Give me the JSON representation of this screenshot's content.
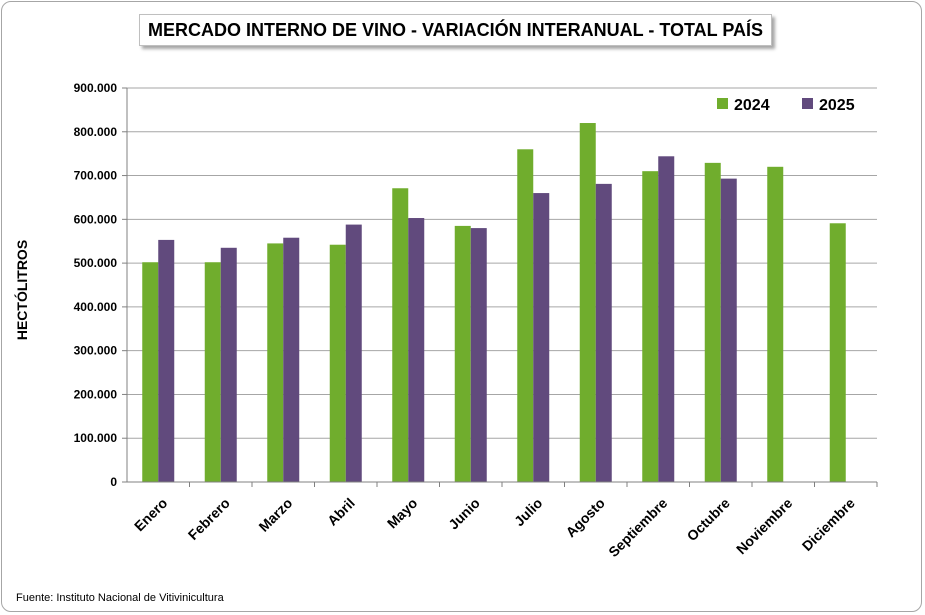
{
  "chart_data": {
    "type": "bar",
    "title": "MERCADO INTERNO DE VINO - VARIACIÓN INTERANUAL - TOTAL PAÍS",
    "ylabel": "HECTÓLITROS",
    "xlabel": "",
    "ylim": [
      0,
      900000
    ],
    "yticks": [
      0,
      100000,
      200000,
      300000,
      400000,
      500000,
      600000,
      700000,
      800000,
      900000
    ],
    "ytick_labels": [
      "0",
      "100.000",
      "200.000",
      "300.000",
      "400.000",
      "500.000",
      "600.000",
      "700.000",
      "800.000",
      "900.000"
    ],
    "grid": true,
    "legend_position": "top-right",
    "categories": [
      "Enero",
      "Febrero",
      "Marzo",
      "Abril",
      "Mayo",
      "Junio",
      "Julio",
      "Agosto",
      "Septiembre",
      "Octubre",
      "Noviembre",
      "Diciembre"
    ],
    "series": [
      {
        "name": "2024",
        "color": "#70ad2d",
        "values": [
          502000,
          502000,
          545000,
          542000,
          671000,
          585000,
          760000,
          820000,
          710000,
          729000,
          720000,
          591000
        ]
      },
      {
        "name": "2025",
        "color": "#614a7d",
        "values": [
          553000,
          535000,
          558000,
          588000,
          603000,
          580000,
          660000,
          681000,
          744000,
          693000,
          null,
          null
        ]
      }
    ],
    "source": "Fuente: Instituto Nacional de Vitivinicultura"
  }
}
